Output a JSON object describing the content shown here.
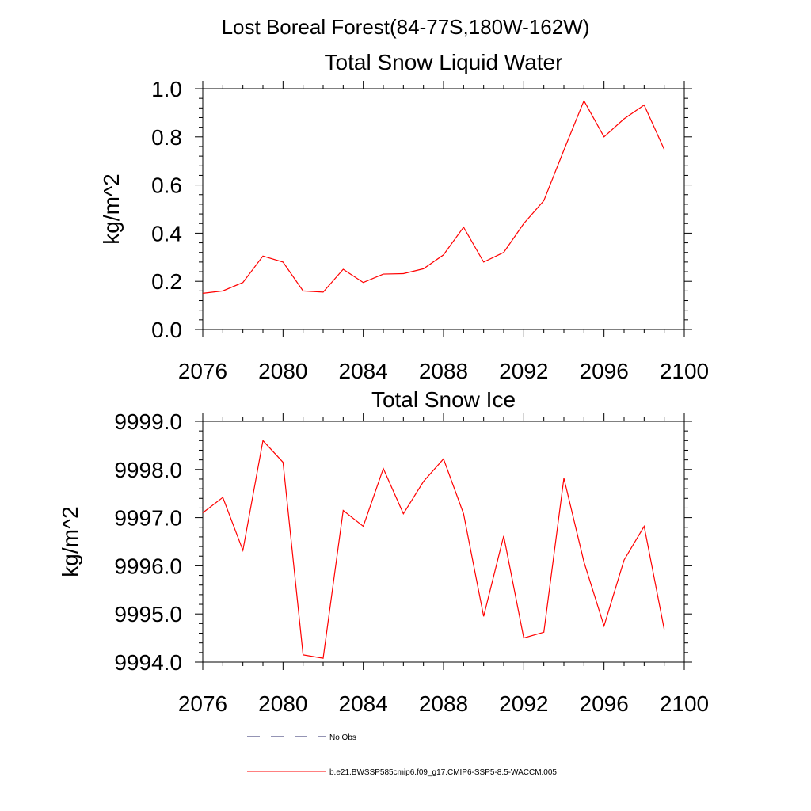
{
  "figure_title": "Lost Boreal Forest(84-77S,180W-162W)",
  "colors": {
    "series": "#ff0000",
    "obs": "#2a2a6a",
    "axis": "#000000"
  },
  "legend": {
    "obs_label": "No Obs",
    "model_label": "b.e21.BWSSP585cmip6.f09_g17.CMIP6-SSP5-8.5-WACCM.005"
  },
  "chart_data": [
    {
      "type": "line",
      "title": "Total Snow Liquid Water",
      "xlabel": "",
      "ylabel": "kg/m^2",
      "xlim": [
        2076,
        2100
      ],
      "ylim": [
        0.0,
        1.0
      ],
      "x_ticks": [
        2076,
        2080,
        2084,
        2088,
        2092,
        2096,
        2100
      ],
      "y_ticks": [
        0.0,
        0.2,
        0.4,
        0.6,
        0.8,
        1.0
      ],
      "y_tick_decimals": 1,
      "grid": false,
      "series": [
        {
          "x": [
            2076,
            2077,
            2078,
            2079,
            2080,
            2081,
            2082,
            2083,
            2084,
            2085,
            2086,
            2087,
            2088,
            2089,
            2090,
            2091,
            2092,
            2093,
            2094,
            2095,
            2096,
            2097,
            2098,
            2099
          ],
          "values": [
            0.15,
            0.16,
            0.195,
            0.305,
            0.28,
            0.16,
            0.155,
            0.25,
            0.195,
            0.23,
            0.232,
            0.252,
            0.31,
            0.425,
            0.28,
            0.32,
            0.44,
            0.535,
            0.745,
            0.95,
            0.8,
            0.875,
            0.932,
            0.748
          ]
        }
      ]
    },
    {
      "type": "line",
      "title": "Total Snow Ice",
      "xlabel": "",
      "ylabel": "kg/m^2",
      "xlim": [
        2076,
        2100
      ],
      "ylim": [
        9994.0,
        9999.0
      ],
      "x_ticks": [
        2076,
        2080,
        2084,
        2088,
        2092,
        2096,
        2100
      ],
      "y_ticks": [
        9994.0,
        9995.0,
        9996.0,
        9997.0,
        9998.0,
        9999.0
      ],
      "y_tick_decimals": 1,
      "grid": false,
      "series": [
        {
          "x": [
            2076,
            2077,
            2078,
            2079,
            2080,
            2081,
            2082,
            2083,
            2084,
            2085,
            2086,
            2087,
            2088,
            2089,
            2090,
            2091,
            2092,
            2093,
            2094,
            2095,
            2096,
            2097,
            2098,
            2099
          ],
          "values": [
            9997.1,
            9997.42,
            9996.32,
            9998.6,
            9998.15,
            9994.15,
            9994.08,
            9997.15,
            9996.82,
            9998.02,
            9997.08,
            9997.75,
            9998.22,
            9997.08,
            9994.95,
            9996.62,
            9994.5,
            9994.62,
            9997.82,
            9996.08,
            9994.75,
            9996.12,
            9996.82,
            9994.68
          ]
        }
      ]
    }
  ]
}
